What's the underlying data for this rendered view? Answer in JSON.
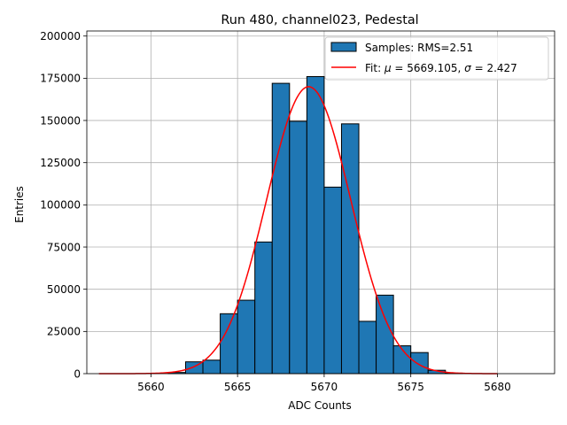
{
  "chart_data": {
    "type": "bar",
    "title": "Run 480, channel023, Pedestal",
    "xlabel": "ADC Counts",
    "ylabel": "Entries",
    "xlim": [
      5656.3,
      5683.3
    ],
    "ylim": [
      0,
      203000
    ],
    "grid": true,
    "legend_position": "top-right",
    "x_ticks": [
      5660,
      5665,
      5670,
      5675,
      5680
    ],
    "y_ticks": [
      0,
      25000,
      50000,
      75000,
      100000,
      125000,
      150000,
      175000,
      200000
    ],
    "histogram": {
      "name": "Samples: RMS=2.51",
      "color": "#1f77b4",
      "edge_color": "#000000",
      "bins": [
        {
          "x0": 5661,
          "x1": 5662,
          "value": 700
        },
        {
          "x0": 5662,
          "x1": 5663,
          "value": 7000
        },
        {
          "x0": 5663,
          "x1": 5664,
          "value": 8000
        },
        {
          "x0": 5664,
          "x1": 5665,
          "value": 35500
        },
        {
          "x0": 5665,
          "x1": 5666,
          "value": 43500
        },
        {
          "x0": 5666,
          "x1": 5667,
          "value": 78000
        },
        {
          "x0": 5667,
          "x1": 5668,
          "value": 172000
        },
        {
          "x0": 5668,
          "x1": 5669,
          "value": 149500
        },
        {
          "x0": 5669,
          "x1": 5670,
          "value": 176000
        },
        {
          "x0": 5670,
          "x1": 5671,
          "value": 110500
        },
        {
          "x0": 5671,
          "x1": 5672,
          "value": 148000
        },
        {
          "x0": 5672,
          "x1": 5673,
          "value": 31000
        },
        {
          "x0": 5673,
          "x1": 5674,
          "value": 46500
        },
        {
          "x0": 5674,
          "x1": 5675,
          "value": 16500
        },
        {
          "x0": 5675,
          "x1": 5676,
          "value": 12500
        },
        {
          "x0": 5676,
          "x1": 5677,
          "value": 2000
        },
        {
          "x0": 5677,
          "x1": 5678,
          "value": 300
        }
      ]
    },
    "fit": {
      "name": "Fit: μ = 5669.105, σ = 2.427",
      "label_prefix": "Fit: ",
      "mu_symbol": "μ",
      "mu_text": " = 5669.105, ",
      "sigma_symbol": "σ",
      "sigma_text": " = 2.427",
      "mu": 5669.105,
      "sigma": 2.427,
      "amplitude": 170000,
      "x_range": [
        5657,
        5680
      ],
      "color": "#ff0000"
    }
  }
}
